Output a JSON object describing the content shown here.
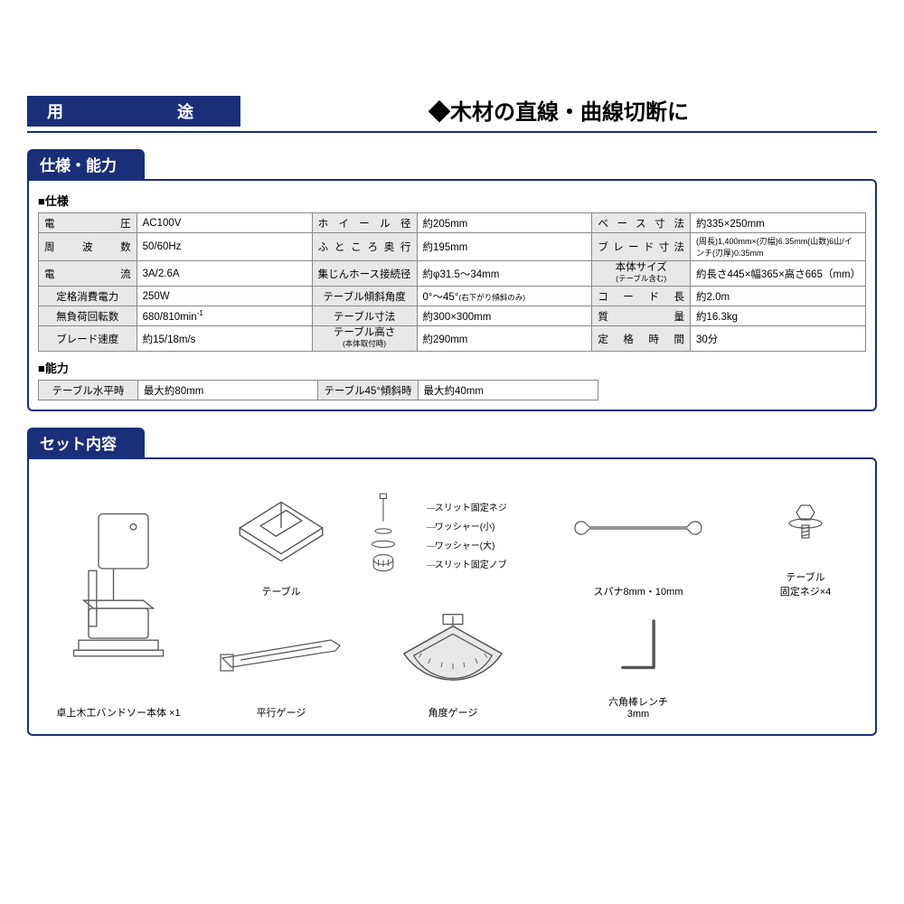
{
  "colors": {
    "brand": "#1a2f7a",
    "label_bg": "#e8e8e8",
    "border": "#888888",
    "text": "#000000",
    "stroke": "#555555"
  },
  "purpose": {
    "label": "用　　途",
    "text": "◆木材の直線・曲線切断に"
  },
  "spec": {
    "header": "仕様・能力",
    "sub1": "■仕様",
    "rows": [
      [
        {
          "l": "電　　　圧",
          "v": "AC100V"
        },
        {
          "l": "ホイール径",
          "v": "約205mm"
        },
        {
          "l": "ベース寸法",
          "v": "約335×250mm"
        }
      ],
      [
        {
          "l": "周 波 数",
          "v": "50/60Hz"
        },
        {
          "l": "ふところ奥行",
          "v": "約195mm"
        },
        {
          "l": "ブレード寸法",
          "v": "(周長)1,400mm×(刃幅)6.35mm(山数)6山/インチ(刃厚)0.35mm",
          "sm": true
        }
      ],
      [
        {
          "l": "電　　　流",
          "v": "3A/2.6A"
        },
        {
          "l": "集じんホース接続径",
          "v": "約φ31.5～34mm",
          "lc": true
        },
        {
          "l": "本体サイズ",
          "ln": "(テーブル含む)",
          "v": "約長さ445×幅365×高さ665（mm）"
        }
      ],
      [
        {
          "l": "定格消費電力",
          "v": "250W",
          "lc": true
        },
        {
          "l": "テーブル傾斜角度",
          "v": "0°～45°(右下がり傾斜のみ)",
          "lc": true,
          "note": true
        },
        {
          "l": "コ ー ド 長",
          "v": "約2.0m"
        }
      ],
      [
        {
          "l": "無負荷回転数",
          "v": "680/810min",
          "sup": "-1",
          "lc": true
        },
        {
          "l": "テーブル寸法",
          "v": "約300×300mm",
          "lc": true
        },
        {
          "l": "質　　　量",
          "v": "約16.3kg"
        }
      ],
      [
        {
          "l": "ブレード速度",
          "v": "約15/18m/s",
          "lc": true
        },
        {
          "l": "テーブル高さ",
          "ln": "(本体取付時)",
          "v": "約290mm"
        },
        {
          "l": "定 格 時 間",
          "v": "30分"
        }
      ]
    ],
    "sub2": "■能力",
    "ability": [
      {
        "l": "テーブル水平時",
        "v": "最大約80mm"
      },
      {
        "l": "テーブル45°傾斜時",
        "v": "最大約40mm"
      }
    ]
  },
  "set": {
    "header": "セット内容",
    "items": {
      "main": "卓上木工バンドソー本体 ×1",
      "table": "テーブル",
      "callouts": [
        "スリット固定ネジ",
        "ワッシャー(小)",
        "ワッシャー(大)",
        "スリット固定ノブ"
      ],
      "spanner": "スパナ8mm・10mm",
      "screw": "テーブル\n固定ネジ×4",
      "parallel": "平行ゲージ",
      "angle": "角度ゲージ",
      "hex": "六角棒レンチ\n3mm"
    }
  }
}
